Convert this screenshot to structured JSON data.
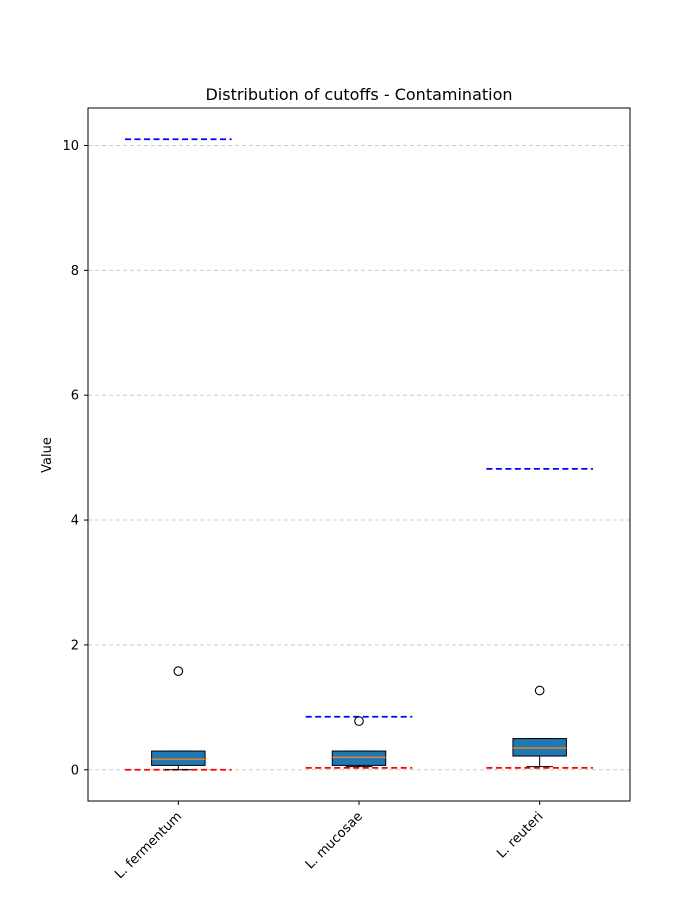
{
  "chart_data": {
    "type": "box",
    "title": "Distribution of cutoffs - Contamination",
    "xlabel": "",
    "ylabel": "Value",
    "ylim": [
      -0.5,
      10.6
    ],
    "yticks": [
      0,
      2,
      4,
      6,
      8,
      10
    ],
    "grid": "y-dashed",
    "categories": [
      "L. fermentum",
      "L. mucosae",
      "L. reuteri"
    ],
    "boxes": [
      {
        "whisker_low": 0.0,
        "q1": 0.07,
        "median": 0.17,
        "q3": 0.3,
        "whisker_high": 0.3,
        "outliers": [
          1.58
        ]
      },
      {
        "whisker_low": 0.05,
        "q1": 0.07,
        "median": 0.2,
        "q3": 0.3,
        "whisker_high": 0.3,
        "outliers": [
          0.78
        ]
      },
      {
        "whisker_low": 0.05,
        "q1": 0.22,
        "median": 0.35,
        "q3": 0.5,
        "whisker_high": 0.5,
        "outliers": [
          1.27
        ]
      }
    ],
    "upper_cutoffs": [
      10.1,
      0.85,
      4.82
    ],
    "lower_cutoffs": [
      0.0,
      0.03,
      0.03
    ],
    "colors": {
      "box_fill": "#1f77b4",
      "median": "#ff7f0e",
      "upper_cutoff": "#0000ff",
      "lower_cutoff": "#ff0000",
      "grid": "#cccccc"
    }
  }
}
